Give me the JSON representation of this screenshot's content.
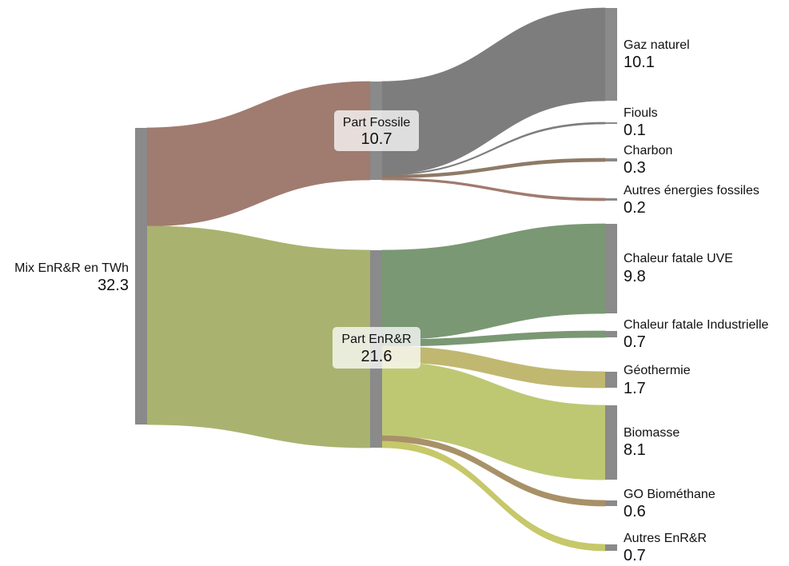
{
  "diagram": {
    "type": "sankey",
    "unit": "TWh",
    "node_color": "#8a8a8a",
    "nodes": [
      {
        "id": "mix",
        "name": "Mix EnR&R en TWh",
        "value": "32.3"
      },
      {
        "id": "fossile",
        "name": "Part Fossile",
        "value": "10.7"
      },
      {
        "id": "enrr",
        "name": "Part EnR&R",
        "value": "21.6"
      },
      {
        "id": "gaz",
        "name": "Gaz naturel",
        "value": "10.1"
      },
      {
        "id": "fiouls",
        "name": "Fiouls",
        "value": "0.1"
      },
      {
        "id": "charbon",
        "name": "Charbon",
        "value": "0.3"
      },
      {
        "id": "autresfos",
        "name": "Autres énergies fossiles",
        "value": "0.2"
      },
      {
        "id": "uve",
        "name": "Chaleur fatale UVE",
        "value": "9.8"
      },
      {
        "id": "indus",
        "name": "Chaleur fatale Industrielle",
        "value": "0.7"
      },
      {
        "id": "geo",
        "name": "Géothermie",
        "value": "1.7"
      },
      {
        "id": "bio",
        "name": "Biomasse",
        "value": "8.1"
      },
      {
        "id": "gobio",
        "name": "GO Biométhane",
        "value": "0.6"
      },
      {
        "id": "autresenr",
        "name": "Autres EnR&R",
        "value": "0.7"
      }
    ],
    "links": [
      {
        "source": "mix",
        "target": "fossile",
        "value": 10.7,
        "color": "#a07b70"
      },
      {
        "source": "mix",
        "target": "enrr",
        "value": 21.6,
        "color": "#a9b36f"
      },
      {
        "source": "fossile",
        "target": "gaz",
        "value": 10.1,
        "color": "#7d7d7d"
      },
      {
        "source": "fossile",
        "target": "fiouls",
        "value": 0.1,
        "color": "#7d7d7d"
      },
      {
        "source": "fossile",
        "target": "charbon",
        "value": 0.3,
        "color": "#8e7a66"
      },
      {
        "source": "fossile",
        "target": "autresfos",
        "value": 0.2,
        "color": "#a07b70"
      },
      {
        "source": "enrr",
        "target": "uve",
        "value": 9.8,
        "color": "#7a9873"
      },
      {
        "source": "enrr",
        "target": "indus",
        "value": 0.7,
        "color": "#7a9873"
      },
      {
        "source": "enrr",
        "target": "geo",
        "value": 1.7,
        "color": "#c0b871"
      },
      {
        "source": "enrr",
        "target": "bio",
        "value": 8.1,
        "color": "#bec873"
      },
      {
        "source": "enrr",
        "target": "gobio",
        "value": 0.6,
        "color": "#a89168"
      },
      {
        "source": "enrr",
        "target": "autresenr",
        "value": 0.7,
        "color": "#c6c86a"
      }
    ]
  }
}
